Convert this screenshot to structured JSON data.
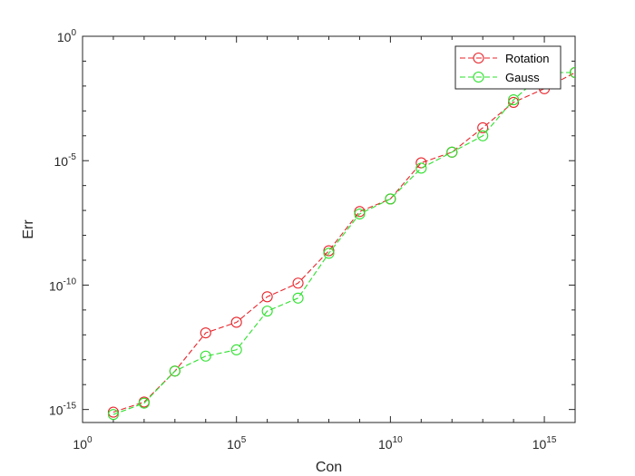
{
  "chart_data": {
    "type": "line",
    "xlabel": "Con",
    "ylabel": "Err",
    "xscale": "log",
    "yscale": "log",
    "xlim": [
      1,
      1e+16
    ],
    "ylim": [
      3e-16,
      1
    ],
    "x_ticks": [
      {
        "value": 1,
        "base": "10",
        "exp": "0"
      },
      {
        "value": 100000,
        "base": "10",
        "exp": "5"
      },
      {
        "value": 10000000000,
        "base": "10",
        "exp": "10"
      },
      {
        "value": 1000000000000000.0,
        "base": "10",
        "exp": "15"
      }
    ],
    "y_ticks": [
      {
        "value": 1,
        "base": "10",
        "exp": "0"
      },
      {
        "value": 1e-05,
        "base": "10",
        "exp": "-5"
      },
      {
        "value": 1e-10,
        "base": "10",
        "exp": "-10"
      },
      {
        "value": 1e-15,
        "base": "10",
        "exp": "-15"
      }
    ],
    "grid": false,
    "legend_position": "top-right",
    "x": [
      10,
      100,
      1000,
      10000,
      100000,
      1000000,
      10000000,
      100000000,
      1000000000,
      10000000000,
      100000000000,
      1000000000000,
      10000000000000,
      100000000000000,
      1000000000000000,
      10000000000000000
    ],
    "series": [
      {
        "name": "Rotation",
        "color": "#e8252b",
        "marker": "circle",
        "line_style": "dashed",
        "values": [
          7.8e-16,
          2e-15,
          3.5e-14,
          1.2e-12,
          3.2e-12,
          3.4e-11,
          1.2e-10,
          2.4e-09,
          9e-08,
          2.9e-07,
          8.2e-06,
          2.2e-05,
          0.00021,
          0.0022,
          0.0078,
          0.035
        ]
      },
      {
        "name": "Gauss",
        "color": "#2de02d",
        "marker": "circle",
        "line_style": "dashed",
        "values": [
          6.3e-16,
          1.8e-15,
          3.5e-14,
          1.4e-13,
          2.5e-13,
          9e-12,
          3e-11,
          1.9e-09,
          7.2e-08,
          2.9e-07,
          5e-06,
          2.2e-05,
          0.0001,
          0.0028,
          0.035,
          0.035
        ]
      }
    ]
  }
}
